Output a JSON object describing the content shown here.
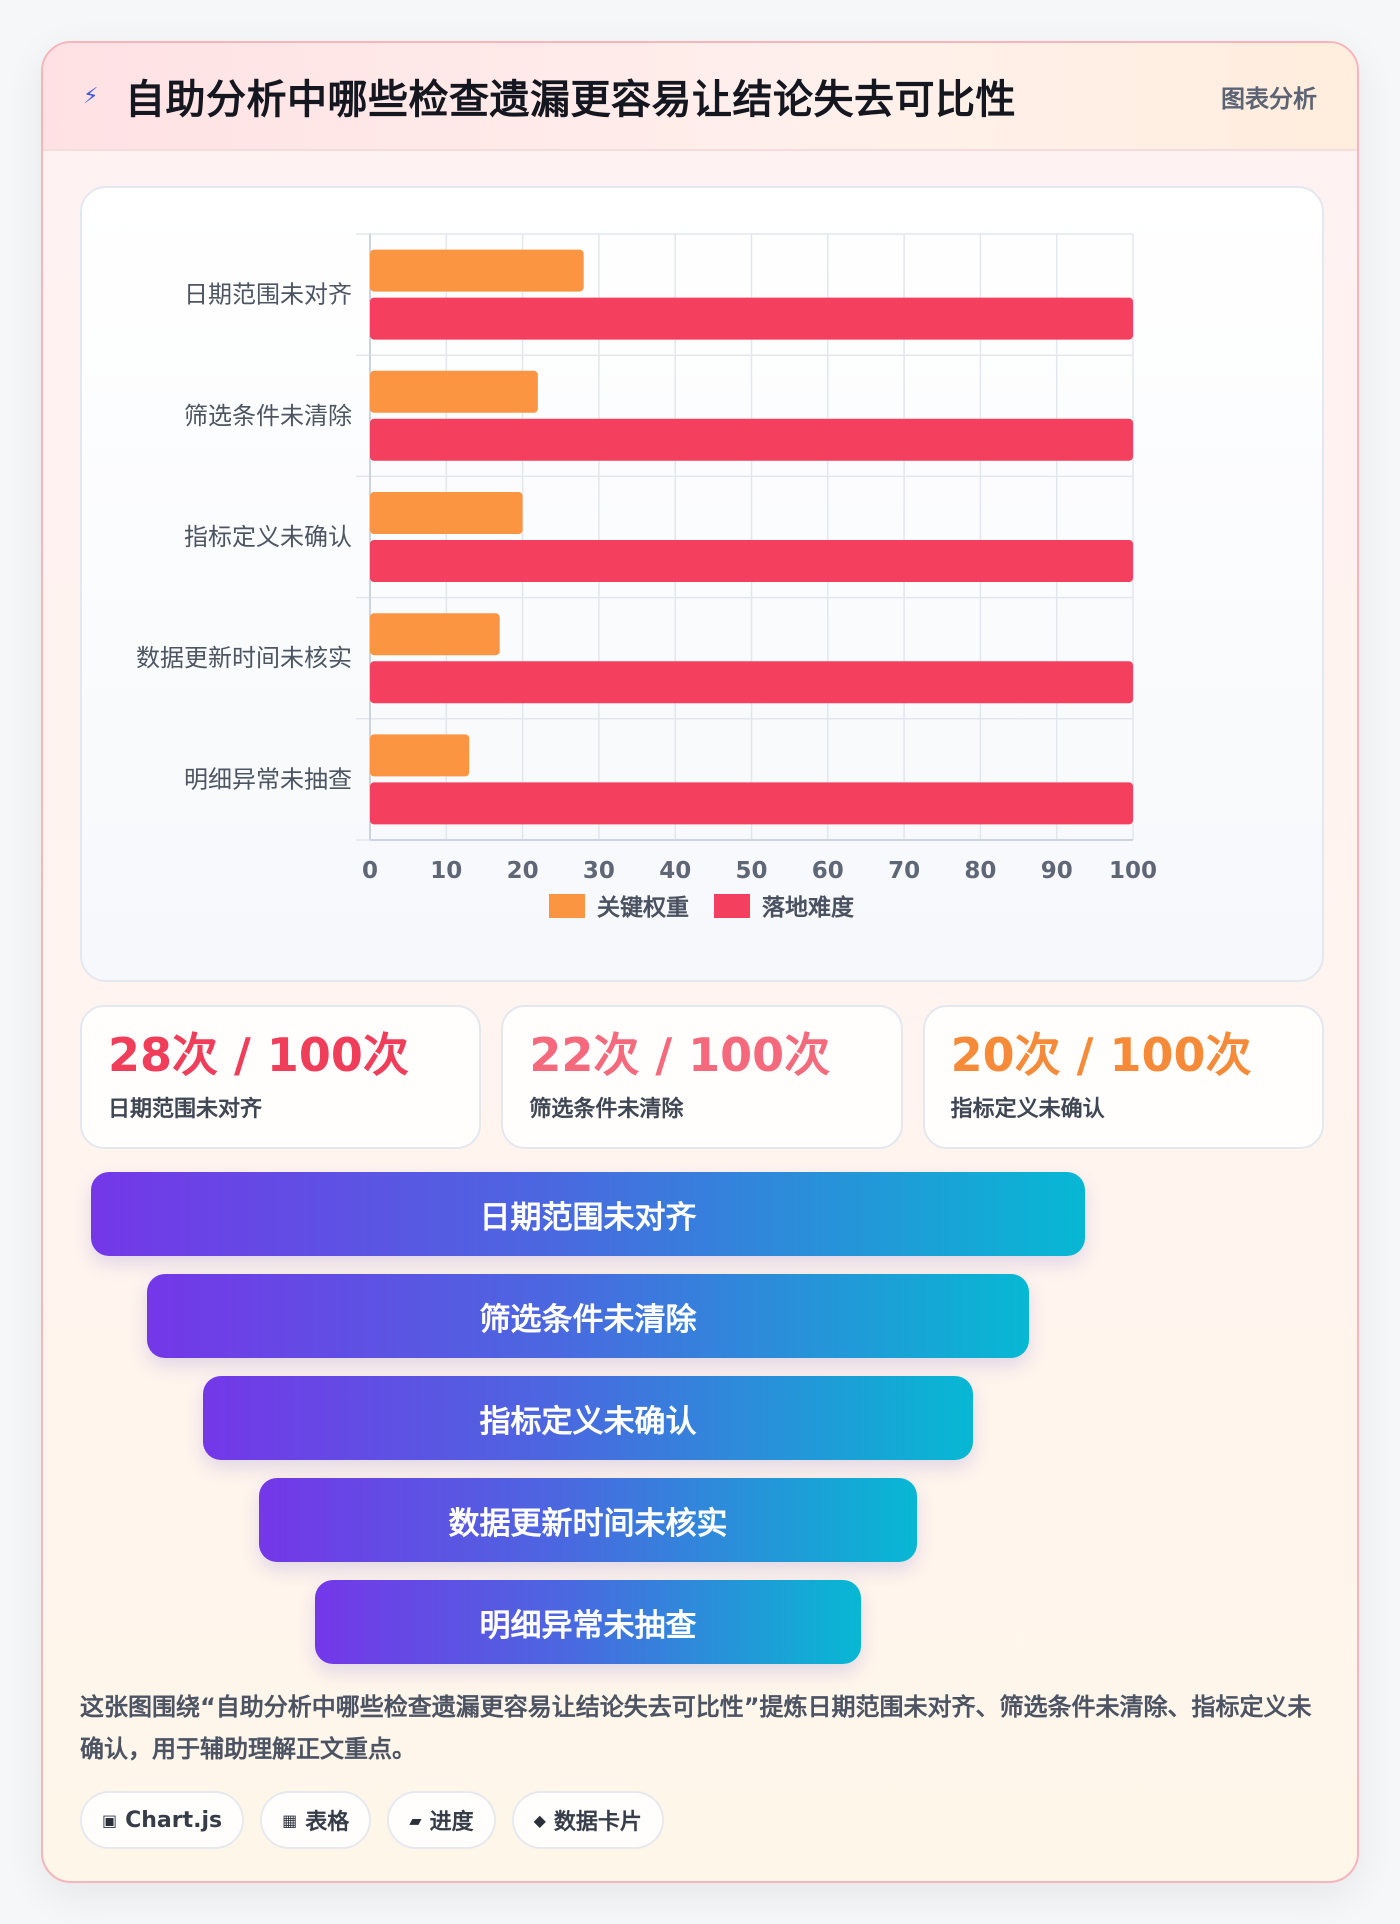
{
  "header": {
    "icon": "lightning-icon",
    "title": "自助分析中哪些检查遗漏更容易让结论失去可比性",
    "tag": "图表分析"
  },
  "chart_data": {
    "type": "bar",
    "orientation": "horizontal",
    "categories": [
      "日期范围未对齐",
      "筛选条件未清除",
      "指标定义未确认",
      "数据更新时间未核实",
      "明细异常未抽查"
    ],
    "series": [
      {
        "name": "关键权重",
        "color": "#fb9541",
        "values": [
          28,
          22,
          20,
          17,
          13
        ]
      },
      {
        "name": "落地难度",
        "color": "#f43f5e",
        "values": [
          100,
          100,
          100,
          100,
          100
        ]
      }
    ],
    "xlim": [
      0,
      100
    ],
    "xticks": [
      0,
      10,
      20,
      30,
      40,
      50,
      60,
      70,
      80,
      90,
      100
    ],
    "grid": true,
    "legend": "bottom"
  },
  "stats": [
    {
      "value": "28次 / 100次",
      "label": "日期范围未对齐",
      "color": "#ef3d5a"
    },
    {
      "value": "22次 / 100次",
      "label": "筛选条件未清除",
      "color": "#f46a7c"
    },
    {
      "value": "20次 / 100次",
      "label": "指标定义未确认",
      "color": "#f58b39"
    }
  ],
  "funnel": [
    "日期范围未对齐",
    "筛选条件未清除",
    "指标定义未确认",
    "数据更新时间未核实",
    "明细异常未抽查"
  ],
  "description": "这张图围绕“自助分析中哪些检查遗漏更容易让结论失去可比性”提炼日期范围未对齐、筛选条件未清除、指标定义未确认，用于辅助理解正文重点。",
  "chips": [
    {
      "icon": "▣",
      "label": "Chart.js"
    },
    {
      "icon": "▦",
      "label": "表格"
    },
    {
      "icon": "▰",
      "label": "进度"
    },
    {
      "icon": "◆",
      "label": "数据卡片"
    }
  ]
}
